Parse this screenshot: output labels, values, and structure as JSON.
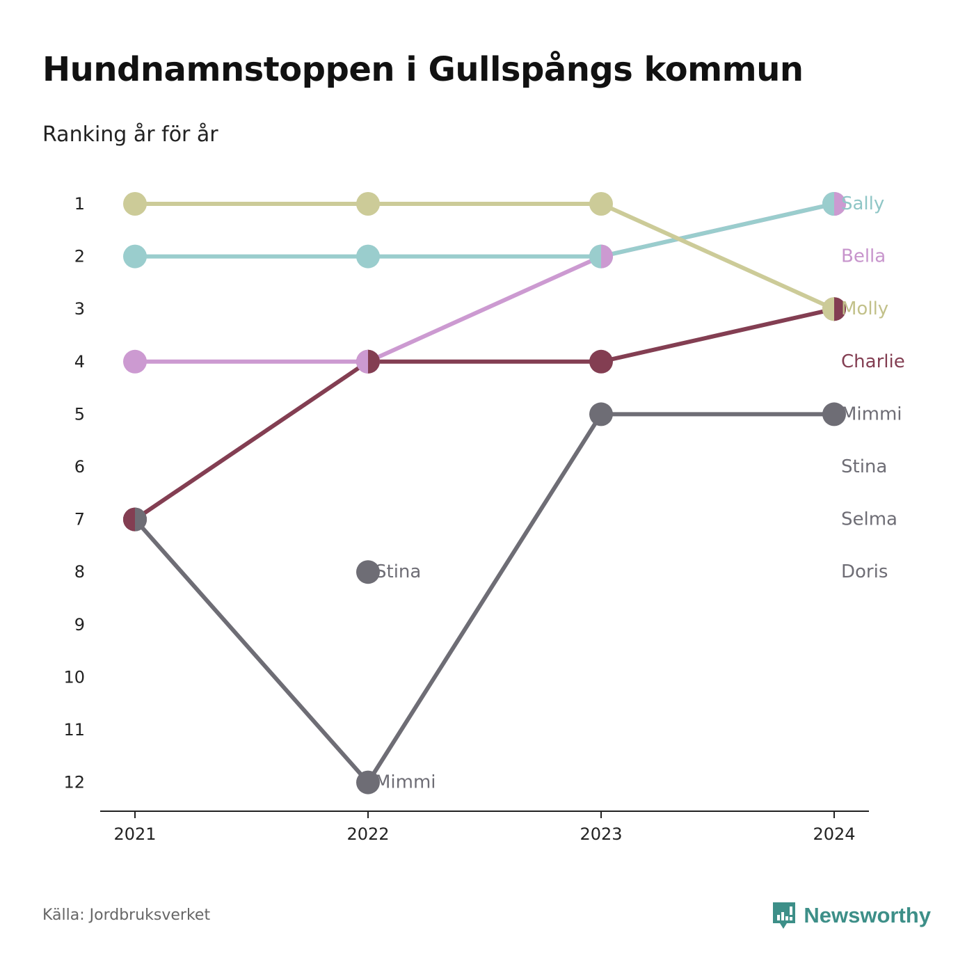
{
  "title": "Hundnamnstoppen i Gullspångs kommun",
  "subtitle": "Ranking år för år",
  "source": "Källa: Jordbruksverket",
  "brand": {
    "name": "Newsworthy",
    "icon": "newsworthy-logo-icon",
    "color": "#3d8f88"
  },
  "chart_data": {
    "type": "line",
    "title": "Hundnamnstoppen i Gullspångs kommun",
    "subtitle": "Ranking år för år",
    "categories": [
      "2021",
      "2022",
      "2023",
      "2024"
    ],
    "y_ticks": [
      "1",
      "2",
      "3",
      "4",
      "5",
      "6",
      "7",
      "8",
      "9",
      "10",
      "11",
      "12"
    ],
    "ylim": [
      1,
      12
    ],
    "y_inverted": true,
    "grid": false,
    "series": [
      {
        "name": "Mimmi",
        "color": "#6e6d75",
        "values": [
          7,
          12,
          5,
          5
        ]
      },
      {
        "name": "Stina",
        "color": "#6e6d75",
        "values": [
          null,
          8,
          null,
          null
        ]
      },
      {
        "name": "Charlie",
        "color": "#833e52",
        "values": [
          7,
          4,
          4,
          3
        ]
      },
      {
        "name": "Bella",
        "color": "#cc9ad1",
        "values": [
          4,
          4,
          2,
          1
        ]
      },
      {
        "name": "Sally",
        "color": "#9acdcd",
        "values": [
          2,
          2,
          2,
          1
        ]
      },
      {
        "name": "Molly",
        "color": "#cccb98",
        "values": [
          1,
          1,
          1,
          3
        ]
      }
    ],
    "end_labels": [
      {
        "text": "Sally",
        "rank": 1,
        "color": "#8fc6c6"
      },
      {
        "text": "Bella",
        "rank": 2,
        "color": "#c794cc"
      },
      {
        "text": "Molly",
        "rank": 3,
        "color": "#c2c18a"
      },
      {
        "text": "Charlie",
        "rank": 4,
        "color": "#833e52"
      },
      {
        "text": "Mimmi",
        "rank": 5,
        "color": "#6e6d75"
      },
      {
        "text": "Stina",
        "rank": 6,
        "color": "#6e6d75"
      },
      {
        "text": "Selma",
        "rank": 7,
        "color": "#6e6d75"
      },
      {
        "text": "Doris",
        "rank": 8,
        "color": "#6e6d75"
      }
    ],
    "inline_labels": [
      {
        "text": "Stina",
        "year": "2022",
        "rank": 8,
        "color": "#6e6d75"
      },
      {
        "text": "Mimmi",
        "year": "2022",
        "rank": 12,
        "color": "#6e6d75"
      }
    ],
    "split_markers": [
      {
        "year": "2021",
        "rank": 7,
        "left": "#833e52",
        "right": "#6e6d75"
      },
      {
        "year": "2022",
        "rank": 4,
        "left": "#cc9ad1",
        "right": "#833e52"
      },
      {
        "year": "2023",
        "rank": 2,
        "left": "#9acdcd",
        "right": "#cc9ad1"
      },
      {
        "year": "2024",
        "rank": 1,
        "left": "#9acdcd",
        "right": "#cc9ad1"
      },
      {
        "year": "2024",
        "rank": 3,
        "left": "#cccb98",
        "right": "#833e52"
      }
    ]
  }
}
